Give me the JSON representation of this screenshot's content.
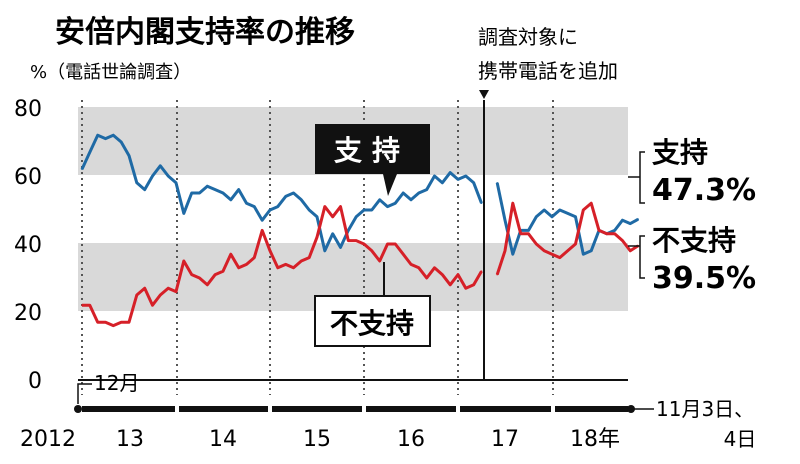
{
  "title": "安倍内閣支持率の推移",
  "subtitle": "%（電話世論調査）",
  "annotation_top": [
    "調査対象に",
    "携帯電話を追加"
  ],
  "month_label": "12月",
  "end_note": [
    "11月3日、",
    "4日"
  ],
  "y_ticks": [
    "80",
    "60",
    "40",
    "20",
    "0"
  ],
  "year_labels": [
    "2012",
    "13",
    "14",
    "15",
    "16",
    "17",
    "18年"
  ],
  "colors": {
    "support": "#1f6aa5",
    "nonsupport": "#d62028",
    "band": "#d9d9d9",
    "axis": "#111111"
  },
  "chart_data": {
    "type": "line",
    "title": "安倍内閣支持率の推移",
    "ylabel": "%（電話世論調査）",
    "ylim": [
      0,
      80
    ],
    "grid": "horizontal bands",
    "x_start": "2012-12",
    "x_end": "2018-11",
    "series": [
      {
        "name": "支持",
        "color": "#1f6aa5",
        "latest_label": "47.3%",
        "points": [
          [
            "2012-12",
            62
          ],
          [
            "2013-01",
            67
          ],
          [
            "2013-02",
            72
          ],
          [
            "2013-03",
            71
          ],
          [
            "2013-04",
            72
          ],
          [
            "2013-05",
            70
          ],
          [
            "2013-06",
            66
          ],
          [
            "2013-07",
            58
          ],
          [
            "2013-08",
            56
          ],
          [
            "2013-09",
            60
          ],
          [
            "2013-10",
            63
          ],
          [
            "2013-11",
            60
          ],
          [
            "2013-12",
            58
          ],
          [
            "2014-01",
            49
          ],
          [
            "2014-02",
            55
          ],
          [
            "2014-03",
            55
          ],
          [
            "2014-04",
            57
          ],
          [
            "2014-05",
            56
          ],
          [
            "2014-06",
            55
          ],
          [
            "2014-07",
            53
          ],
          [
            "2014-08",
            56
          ],
          [
            "2014-09",
            52
          ],
          [
            "2014-10",
            51
          ],
          [
            "2014-11",
            47
          ],
          [
            "2014-12",
            50
          ],
          [
            "2015-01",
            51
          ],
          [
            "2015-02",
            54
          ],
          [
            "2015-03",
            55
          ],
          [
            "2015-04",
            53
          ],
          [
            "2015-05",
            50
          ],
          [
            "2015-06",
            48
          ],
          [
            "2015-07",
            38
          ],
          [
            "2015-08",
            43
          ],
          [
            "2015-09",
            39
          ],
          [
            "2015-10",
            44
          ],
          [
            "2015-11",
            48
          ],
          [
            "2015-12",
            50
          ],
          [
            "2016-01",
            50
          ],
          [
            "2016-02",
            53
          ],
          [
            "2016-03",
            51
          ],
          [
            "2016-04",
            52
          ],
          [
            "2016-05",
            55
          ],
          [
            "2016-06",
            53
          ],
          [
            "2016-07",
            55
          ],
          [
            "2016-08",
            56
          ],
          [
            "2016-09",
            60
          ],
          [
            "2016-10",
            58
          ],
          [
            "2016-11",
            61
          ],
          [
            "2016-12",
            59
          ],
          [
            "2017-01",
            60
          ],
          [
            "2017-02",
            58
          ],
          [
            "2017-03",
            52
          ],
          [
            "2017-05",
            58
          ],
          [
            "2017-06",
            47
          ],
          [
            "2017-07",
            37
          ],
          [
            "2017-08",
            44
          ],
          [
            "2017-09",
            44
          ],
          [
            "2017-10",
            48
          ],
          [
            "2017-11",
            50
          ],
          [
            "2017-12",
            48
          ],
          [
            "2018-01",
            50
          ],
          [
            "2018-02",
            49
          ],
          [
            "2018-03",
            48
          ],
          [
            "2018-04",
            37
          ],
          [
            "2018-05",
            38
          ],
          [
            "2018-06",
            44
          ],
          [
            "2018-07",
            43
          ],
          [
            "2018-08",
            44
          ],
          [
            "2018-09",
            47
          ],
          [
            "2018-10",
            46
          ],
          [
            "2018-11",
            47.3
          ]
        ]
      },
      {
        "name": "不支持",
        "color": "#d62028",
        "latest_label": "39.5%",
        "points": [
          [
            "2012-12",
            22
          ],
          [
            "2013-01",
            22
          ],
          [
            "2013-02",
            17
          ],
          [
            "2013-03",
            17
          ],
          [
            "2013-04",
            16
          ],
          [
            "2013-05",
            17
          ],
          [
            "2013-06",
            17
          ],
          [
            "2013-07",
            25
          ],
          [
            "2013-08",
            27
          ],
          [
            "2013-09",
            22
          ],
          [
            "2013-10",
            25
          ],
          [
            "2013-11",
            27
          ],
          [
            "2013-12",
            26
          ],
          [
            "2014-01",
            35
          ],
          [
            "2014-02",
            31
          ],
          [
            "2014-03",
            30
          ],
          [
            "2014-04",
            28
          ],
          [
            "2014-05",
            31
          ],
          [
            "2014-06",
            32
          ],
          [
            "2014-07",
            37
          ],
          [
            "2014-08",
            33
          ],
          [
            "2014-09",
            34
          ],
          [
            "2014-10",
            36
          ],
          [
            "2014-11",
            44
          ],
          [
            "2014-12",
            38
          ],
          [
            "2015-01",
            33
          ],
          [
            "2015-02",
            34
          ],
          [
            "2015-03",
            33
          ],
          [
            "2015-04",
            35
          ],
          [
            "2015-05",
            36
          ],
          [
            "2015-06",
            42
          ],
          [
            "2015-07",
            51
          ],
          [
            "2015-08",
            48
          ],
          [
            "2015-09",
            51
          ],
          [
            "2015-10",
            41
          ],
          [
            "2015-11",
            41
          ],
          [
            "2015-12",
            40
          ],
          [
            "2016-01",
            38
          ],
          [
            "2016-02",
            35
          ],
          [
            "2016-03",
            40
          ],
          [
            "2016-04",
            40
          ],
          [
            "2016-05",
            37
          ],
          [
            "2016-06",
            34
          ],
          [
            "2016-07",
            33
          ],
          [
            "2016-08",
            30
          ],
          [
            "2016-09",
            33
          ],
          [
            "2016-10",
            31
          ],
          [
            "2016-11",
            28
          ],
          [
            "2016-12",
            31
          ],
          [
            "2017-01",
            27
          ],
          [
            "2017-02",
            28
          ],
          [
            "2017-03",
            32
          ],
          [
            "2017-05",
            31
          ],
          [
            "2017-06",
            38
          ],
          [
            "2017-07",
            52
          ],
          [
            "2017-08",
            43
          ],
          [
            "2017-09",
            43
          ],
          [
            "2017-10",
            40
          ],
          [
            "2017-11",
            38
          ],
          [
            "2017-12",
            37
          ],
          [
            "2018-01",
            36
          ],
          [
            "2018-02",
            38
          ],
          [
            "2018-03",
            40
          ],
          [
            "2018-04",
            50
          ],
          [
            "2018-05",
            52
          ],
          [
            "2018-06",
            44
          ],
          [
            "2018-07",
            43
          ],
          [
            "2018-08",
            43
          ],
          [
            "2018-09",
            41
          ],
          [
            "2018-10",
            38
          ],
          [
            "2018-11",
            39.5
          ]
        ]
      }
    ]
  }
}
